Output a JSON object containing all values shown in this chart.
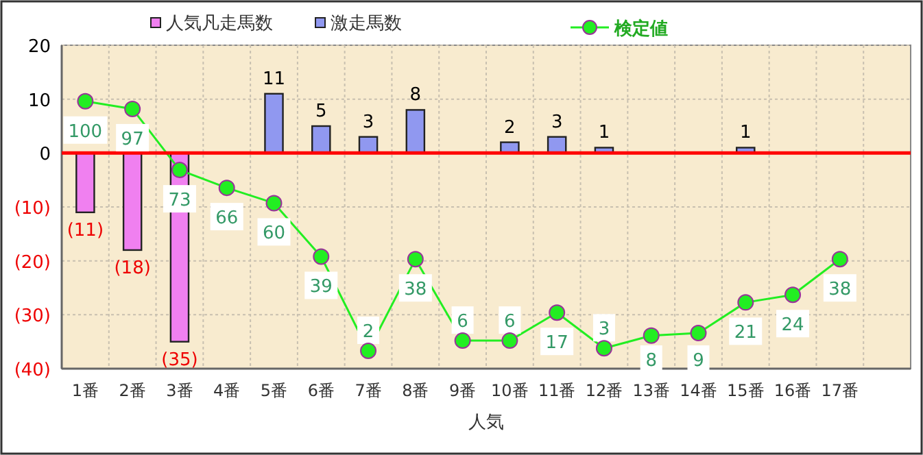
{
  "chart_data": {
    "type": "bar",
    "xlabel": "人気",
    "legend": "top",
    "categories": [
      "1番",
      "2番",
      "3番",
      "4番",
      "5番",
      "6番",
      "7番",
      "8番",
      "9番",
      "10番",
      "11番",
      "12番",
      "13番",
      "14番",
      "15番",
      "16番",
      "17番",
      null
    ],
    "series": [
      {
        "name": "人気凡走馬数",
        "color": "#f080f0",
        "values": [
          -11,
          -18,
          -35,
          null,
          null,
          null,
          null,
          null,
          null,
          null,
          null,
          null,
          null,
          null,
          null,
          null,
          null,
          null
        ],
        "value_labels": [
          "(11)",
          "(18)",
          "(35)",
          null,
          null,
          null,
          null,
          null,
          null,
          null,
          null,
          null,
          null,
          null,
          null,
          null,
          null,
          null
        ]
      },
      {
        "name": "激走馬数",
        "color": "#9098f0",
        "values": [
          null,
          null,
          null,
          null,
          11,
          5,
          3,
          8,
          null,
          2,
          3,
          1,
          null,
          null,
          1,
          null,
          null,
          null
        ],
        "value_labels": [
          null,
          null,
          null,
          null,
          "11",
          "5",
          "3",
          "8",
          null,
          "2",
          "3",
          "1",
          null,
          null,
          "1",
          null,
          null,
          null
        ]
      },
      {
        "name": "検定値",
        "type": "line",
        "axis": "y2",
        "color": "#22ee22",
        "marker": "circle",
        "values": [
          100,
          97,
          73,
          66,
          60,
          39,
          2,
          38,
          6,
          6,
          17,
          3,
          8,
          9,
          21,
          24,
          38,
          null
        ],
        "value_labels": [
          "100",
          "97",
          "73",
          "66",
          "60",
          "39",
          "2",
          "38",
          "6",
          "6",
          "17",
          "3",
          "8",
          "9",
          "21",
          "24",
          "38",
          null
        ]
      }
    ],
    "ylim": [
      -40,
      20
    ],
    "yticks": [
      {
        "value": -40,
        "label": "(40)"
      },
      {
        "value": -30,
        "label": "(30)"
      },
      {
        "value": -20,
        "label": "(20)"
      },
      {
        "value": -10,
        "label": "(10)"
      },
      0,
      10,
      20
    ],
    "y2lim": [
      -5,
      122
    ],
    "grid": true,
    "ref_lines": [
      {
        "axis": "y",
        "value": 0,
        "color": "#ff0000"
      }
    ]
  }
}
